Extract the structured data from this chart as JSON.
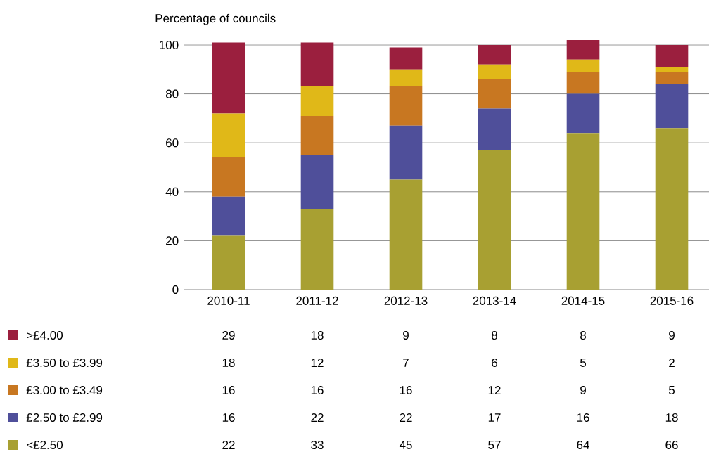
{
  "chart_data": {
    "type": "bar",
    "stacked": true,
    "ylabel": "Percentage of councils",
    "categories": [
      "2010-11",
      "2011-12",
      "2012-13",
      "2013-14",
      "2014-15",
      "2015-16"
    ],
    "series": [
      {
        "name": "<£2.50",
        "color": "#a8a032",
        "values": [
          22,
          33,
          45,
          57,
          64,
          66
        ]
      },
      {
        "name": "£2.50 to £2.99",
        "color": "#4f4f9a",
        "values": [
          16,
          22,
          22,
          17,
          16,
          18
        ]
      },
      {
        "name": "£3.00 to £3.49",
        "color": "#c87721",
        "values": [
          16,
          16,
          16,
          12,
          9,
          5
        ]
      },
      {
        "name": "£3.50 to £3.99",
        "color": "#e0b818",
        "values": [
          18,
          12,
          7,
          6,
          5,
          2
        ]
      },
      {
        "name": ">£4.00",
        "color": "#9b1f3e",
        "values": [
          29,
          18,
          9,
          8,
          8,
          9
        ]
      }
    ],
    "ylim": [
      0,
      102
    ],
    "yticks": [
      0,
      20,
      40,
      60,
      80,
      100
    ],
    "grid": "y",
    "legend": "bottom left",
    "data_labels": true
  }
}
